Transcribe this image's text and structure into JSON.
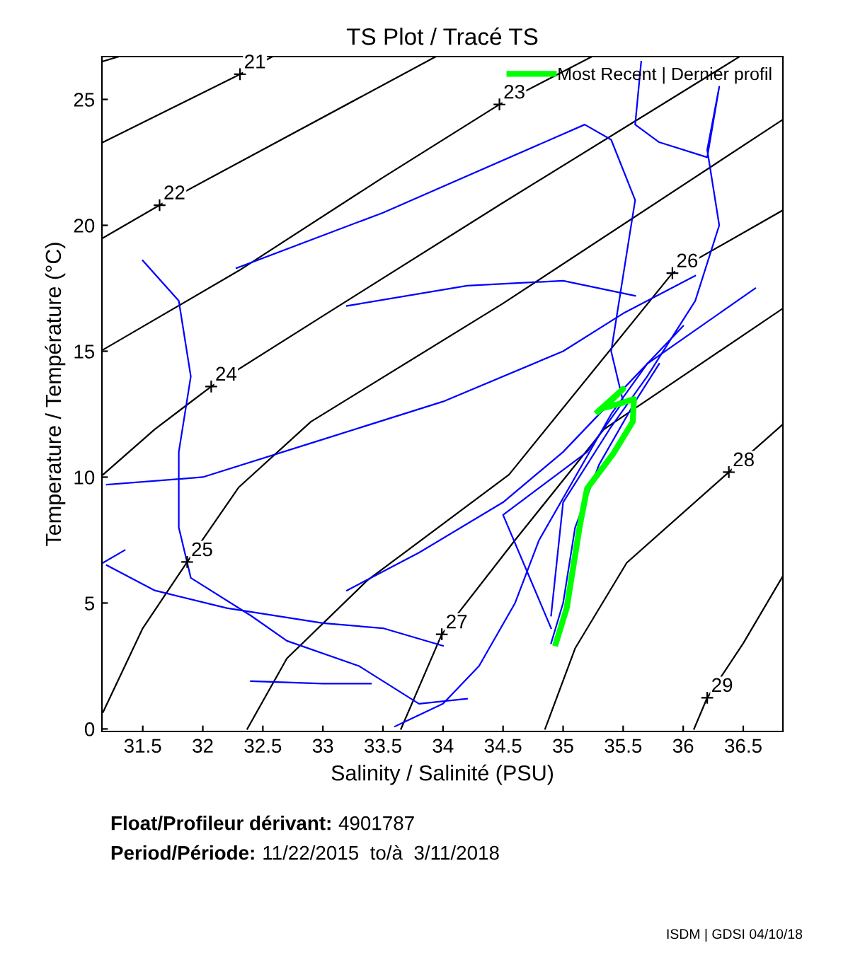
{
  "chart_data": {
    "type": "line",
    "title": "TS Plot / Tracé TS",
    "xlabel": "Salinity / Salinité (PSU)",
    "ylabel": "Temperature / Température (°C)",
    "xlim": [
      31.16,
      36.83
    ],
    "ylim": [
      -0.1,
      26.7
    ],
    "xticks": [
      31.5,
      32,
      32.5,
      33,
      33.5,
      34,
      34.5,
      35,
      35.5,
      36,
      36.5
    ],
    "yticks": [
      0,
      5,
      10,
      15,
      20,
      25
    ],
    "grid": false,
    "legend": "top right",
    "marker": "none",
    "line_style": "solid",
    "series": [
      {
        "color": "#000000",
        "x": [
          31.16,
          31.3
        ],
        "values": [
          26.5,
          26.7
        ]
      },
      {
        "color": "#000000",
        "x": [
          31.17,
          32.31,
          32.58
        ],
        "values": [
          23.3,
          26.0,
          26.7
        ]
      },
      {
        "color": "#000000",
        "x": [
          31.17,
          31.64,
          33.94
        ],
        "values": [
          19.5,
          20.8,
          26.7
        ]
      },
      {
        "color": "#000000",
        "x": [
          31.17,
          32.3,
          33.5,
          34.47,
          35.24
        ],
        "values": [
          15.06,
          18.2,
          21.9,
          24.8,
          26.7
        ]
      },
      {
        "color": "#000000",
        "x": [
          31.17,
          31.6,
          32.07,
          33.0,
          34.5,
          36.47
        ],
        "values": [
          10.1,
          11.9,
          13.6,
          16.4,
          20.9,
          26.7
        ]
      },
      {
        "color": "#000000",
        "x": [
          31.17,
          31.5,
          31.87,
          32.3,
          32.9,
          34.5,
          36.83
        ],
        "values": [
          0.67,
          4.0,
          6.63,
          9.6,
          12.2,
          16.9,
          24.2
        ]
      },
      {
        "color": "#000000",
        "x": [
          32.37,
          32.7,
          33.37,
          34.55,
          35.91,
          36.83
        ],
        "values": [
          0,
          2.8,
          5.9,
          10.1,
          18.1,
          20.6
        ]
      },
      {
        "color": "#000000",
        "x": [
          33.65,
          33.99,
          34.6,
          35.34,
          36.83
        ],
        "values": [
          0,
          3.76,
          7.5,
          11.9,
          16.7
        ]
      },
      {
        "color": "#000000",
        "x": [
          34.85,
          35.1,
          35.53,
          36.38,
          36.83
        ],
        "values": [
          0,
          3.2,
          6.6,
          10.2,
          12.1
        ]
      },
      {
        "color": "#000000",
        "x": [
          36.09,
          36.2,
          36.5,
          36.83
        ],
        "values": [
          0,
          1.24,
          3.4,
          6.07
        ]
      },
      {
        "color": "#0000ff",
        "x": [
          32.28,
          33.5,
          35.18,
          35.4,
          35.6,
          35.5,
          35.4,
          35.5,
          35.2,
          34.5,
          34.9
        ],
        "values": [
          18.3,
          20.5,
          24.0,
          23.4,
          21.0,
          18.0,
          15.0,
          13.0,
          11.0,
          8.5,
          4.0
        ]
      },
      {
        "color": "#0000ff",
        "x": [
          31.5,
          31.8,
          31.9,
          31.8,
          31.8,
          31.9,
          32.4,
          32.7,
          33.3,
          33.8,
          34.2
        ],
        "values": [
          18.6,
          17.0,
          14.0,
          11.0,
          8.0,
          6.0,
          4.5,
          3.5,
          2.5,
          1.0,
          1.2
        ]
      },
      {
        "color": "#0000ff",
        "x": [
          35.65,
          35.6,
          35.8,
          36.2,
          36.3,
          36.2,
          36.3,
          36.1,
          35.7,
          35.4,
          35.0,
          34.9
        ],
        "values": [
          26.5,
          24.0,
          23.3,
          22.7,
          25.5,
          23.0,
          20.0,
          17.0,
          14.0,
          12.0,
          9.0,
          4.5
        ]
      },
      {
        "color": "#0000ff",
        "x": [
          31.2,
          32.0,
          33.0,
          34.0,
          35.0,
          35.5,
          36.1
        ],
        "values": [
          9.7,
          10.0,
          11.5,
          13.0,
          15.0,
          16.5,
          18.0
        ]
      },
      {
        "color": "#0000ff",
        "x": [
          31.17,
          31.35
        ],
        "values": [
          6.6,
          7.1
        ]
      },
      {
        "color": "#0000ff",
        "x": [
          31.2,
          31.6,
          32.2,
          33.0,
          33.5,
          34.0
        ],
        "values": [
          6.5,
          5.5,
          4.8,
          4.2,
          4.0,
          3.3
        ]
      },
      {
        "color": "#0000ff",
        "x": [
          32.4,
          33.0,
          33.4
        ],
        "values": [
          1.9,
          1.8,
          1.8
        ]
      },
      {
        "color": "#0000ff",
        "x": [
          33.2,
          33.8,
          34.5,
          35.0,
          35.5,
          36.0
        ],
        "values": [
          5.5,
          7.0,
          9.0,
          11.0,
          13.5,
          16.0
        ]
      },
      {
        "color": "#0000ff",
        "x": [
          33.6,
          34.0,
          34.3,
          34.6,
          34.8,
          35.1,
          35.4,
          35.7,
          36.6
        ],
        "values": [
          0.1,
          1.0,
          2.5,
          5.0,
          7.5,
          10.0,
          12.5,
          14.5,
          17.5
        ]
      },
      {
        "color": "#0000ff",
        "x": [
          34.9,
          35.0,
          35.1,
          35.3,
          35.6,
          35.8
        ],
        "values": [
          3.4,
          5.0,
          8.0,
          10.5,
          13.0,
          14.5
        ]
      },
      {
        "color": "#0000ff",
        "x": [
          33.2,
          34.2,
          35.0,
          35.6
        ],
        "values": [
          16.8,
          17.6,
          17.8,
          17.2
        ]
      },
      {
        "name": "Most Recent | Dernier profil",
        "color": "#00ff00",
        "x": [
          34.94,
          35.03,
          35.14,
          35.2,
          35.42,
          35.58,
          35.59,
          35.46,
          35.34,
          35.5,
          35.29
        ],
        "values": [
          3.4,
          4.8,
          8.1,
          9.55,
          10.95,
          12.2,
          13.1,
          12.9,
          12.75,
          13.5,
          12.6
        ]
      }
    ],
    "annotations": [
      {
        "text": "21",
        "x": 32.31,
        "y": 26.0
      },
      {
        "text": "22",
        "x": 31.64,
        "y": 20.8
      },
      {
        "text": "23",
        "x": 34.47,
        "y": 24.8
      },
      {
        "text": "24",
        "x": 32.07,
        "y": 13.6
      },
      {
        "text": "25",
        "x": 31.87,
        "y": 6.63
      },
      {
        "text": "26",
        "x": 35.91,
        "y": 18.1
      },
      {
        "text": "27",
        "x": 33.99,
        "y": 3.76
      },
      {
        "text": "28",
        "x": 36.38,
        "y": 10.2
      },
      {
        "text": "29",
        "x": 36.2,
        "y": 1.24
      },
      "Float/Profileur dérivant:",
      "4901787",
      "Period/Période:",
      "11/22/2015  to/à  3/11/2018",
      "ISDM | GDSI 04/10/18"
    ]
  }
}
